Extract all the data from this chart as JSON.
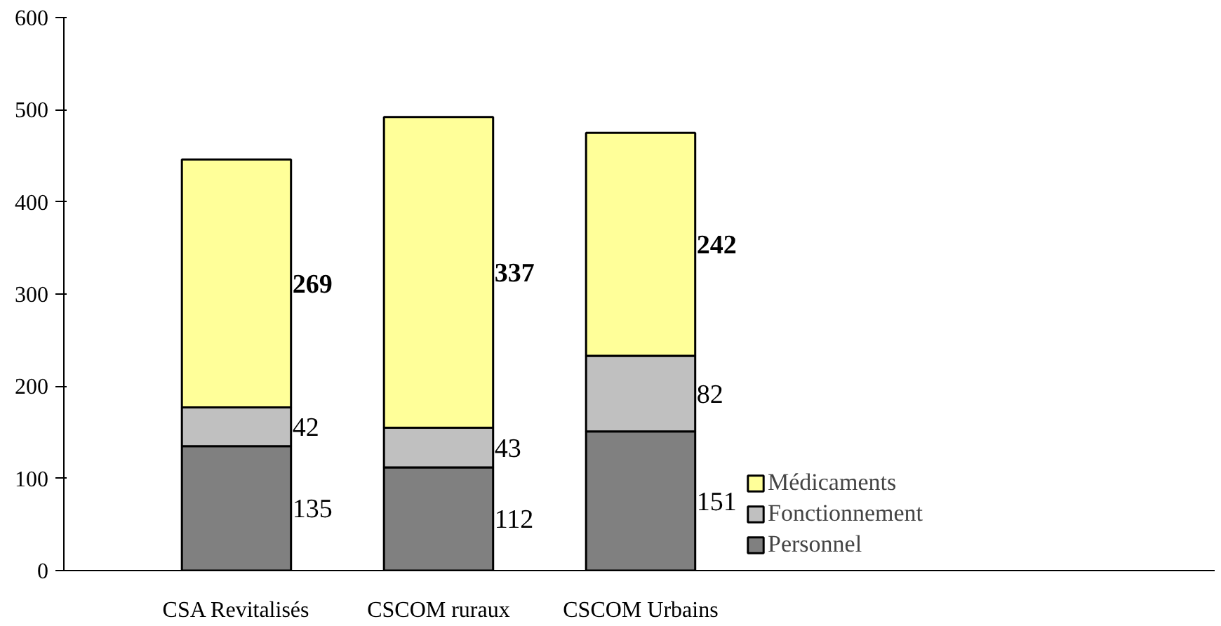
{
  "chart_data": {
    "type": "bar",
    "stacked": true,
    "categories": [
      "CSA Revitalisés",
      "CSCOM ruraux",
      "CSCOM Urbains"
    ],
    "series": [
      {
        "name": "Personnel",
        "color": "#808080",
        "values": [
          135,
          112,
          151
        ]
      },
      {
        "name": "Fonctionnement",
        "color": "#c0c0c0",
        "values": [
          42,
          43,
          82
        ]
      },
      {
        "name": "Médicaments",
        "color": "#ffff99",
        "values": [
          269,
          337,
          242
        ]
      }
    ],
    "ylim": [
      0,
      600
    ],
    "yticks": [
      0,
      100,
      200,
      300,
      400,
      500,
      600
    ],
    "grid": false,
    "legend": "right",
    "data_labels": true
  }
}
